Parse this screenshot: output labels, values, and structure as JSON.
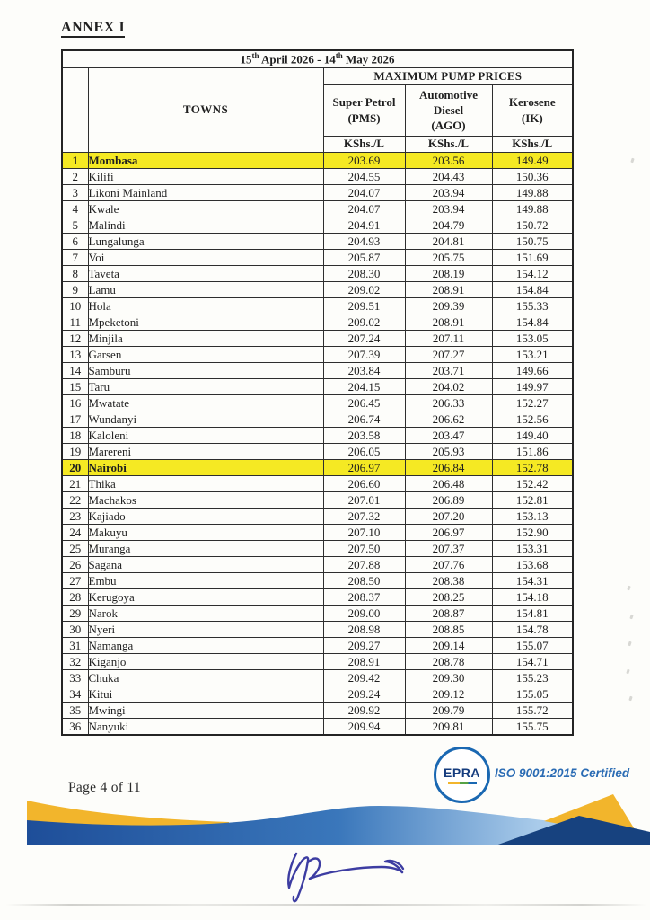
{
  "document": {
    "annex_title": "ANNEX I",
    "page_footer": "Page 4 of 11",
    "logo": {
      "text": "EPRA",
      "iso_label": "ISO 9001:2015 Certified"
    }
  },
  "table": {
    "period": {
      "p1": "15",
      "s1": "th",
      "p2": " April 2026 - 14",
      "s2": "th",
      "p3": " May 2026"
    },
    "prices_header": "MAXIMUM PUMP PRICES",
    "towns_header": "TOWNS",
    "columns": [
      {
        "name_lines": [
          "Super Petrol",
          "(PMS)"
        ],
        "unit": "KShs./L"
      },
      {
        "name_lines": [
          "Automotive",
          "Diesel",
          "(AGO)"
        ],
        "unit": "KShs./L"
      },
      {
        "name_lines": [
          "Kerosene",
          "(IK)"
        ],
        "unit": "KShs./L"
      }
    ],
    "rows": [
      {
        "no": "1",
        "town": "Mombasa",
        "petrol": "203.69",
        "diesel": "203.56",
        "kerosene": "149.49",
        "highlight": true
      },
      {
        "no": "2",
        "town": "Kilifi",
        "petrol": "204.55",
        "diesel": "204.43",
        "kerosene": "150.36",
        "highlight": false
      },
      {
        "no": "3",
        "town": "Likoni Mainland",
        "petrol": "204.07",
        "diesel": "203.94",
        "kerosene": "149.88",
        "highlight": false
      },
      {
        "no": "4",
        "town": "Kwale",
        "petrol": "204.07",
        "diesel": "203.94",
        "kerosene": "149.88",
        "highlight": false
      },
      {
        "no": "5",
        "town": "Malindi",
        "petrol": "204.91",
        "diesel": "204.79",
        "kerosene": "150.72",
        "highlight": false
      },
      {
        "no": "6",
        "town": "Lungalunga",
        "petrol": "204.93",
        "diesel": "204.81",
        "kerosene": "150.75",
        "highlight": false
      },
      {
        "no": "7",
        "town": "Voi",
        "petrol": "205.87",
        "diesel": "205.75",
        "kerosene": "151.69",
        "highlight": false
      },
      {
        "no": "8",
        "town": "Taveta",
        "petrol": "208.30",
        "diesel": "208.19",
        "kerosene": "154.12",
        "highlight": false
      },
      {
        "no": "9",
        "town": "Lamu",
        "petrol": "209.02",
        "diesel": "208.91",
        "kerosene": "154.84",
        "highlight": false
      },
      {
        "no": "10",
        "town": "Hola",
        "petrol": "209.51",
        "diesel": "209.39",
        "kerosene": "155.33",
        "highlight": false
      },
      {
        "no": "11",
        "town": "Mpeketoni",
        "petrol": "209.02",
        "diesel": "208.91",
        "kerosene": "154.84",
        "highlight": false
      },
      {
        "no": "12",
        "town": "Minjila",
        "petrol": "207.24",
        "diesel": "207.11",
        "kerosene": "153.05",
        "highlight": false
      },
      {
        "no": "13",
        "town": "Garsen",
        "petrol": "207.39",
        "diesel": "207.27",
        "kerosene": "153.21",
        "highlight": false
      },
      {
        "no": "14",
        "town": "Samburu",
        "petrol": "203.84",
        "diesel": "203.71",
        "kerosene": "149.66",
        "highlight": false
      },
      {
        "no": "15",
        "town": "Taru",
        "petrol": "204.15",
        "diesel": "204.02",
        "kerosene": "149.97",
        "highlight": false
      },
      {
        "no": "16",
        "town": "Mwatate",
        "petrol": "206.45",
        "diesel": "206.33",
        "kerosene": "152.27",
        "highlight": false
      },
      {
        "no": "17",
        "town": "Wundanyi",
        "petrol": "206.74",
        "diesel": "206.62",
        "kerosene": "152.56",
        "highlight": false
      },
      {
        "no": "18",
        "town": "Kaloleni",
        "petrol": "203.58",
        "diesel": "203.47",
        "kerosene": "149.40",
        "highlight": false
      },
      {
        "no": "19",
        "town": "Marereni",
        "petrol": "206.05",
        "diesel": "205.93",
        "kerosene": "151.86",
        "highlight": false
      },
      {
        "no": "20",
        "town": "Nairobi",
        "petrol": "206.97",
        "diesel": "206.84",
        "kerosene": "152.78",
        "highlight": true
      },
      {
        "no": "21",
        "town": "Thika",
        "petrol": "206.60",
        "diesel": "206.48",
        "kerosene": "152.42",
        "highlight": false
      },
      {
        "no": "22",
        "town": "Machakos",
        "petrol": "207.01",
        "diesel": "206.89",
        "kerosene": "152.81",
        "highlight": false
      },
      {
        "no": "23",
        "town": "Kajiado",
        "petrol": "207.32",
        "diesel": "207.20",
        "kerosene": "153.13",
        "highlight": false
      },
      {
        "no": "24",
        "town": "Makuyu",
        "petrol": "207.10",
        "diesel": "206.97",
        "kerosene": "152.90",
        "highlight": false
      },
      {
        "no": "25",
        "town": "Muranga",
        "petrol": "207.50",
        "diesel": "207.37",
        "kerosene": "153.31",
        "highlight": false
      },
      {
        "no": "26",
        "town": "Sagana",
        "petrol": "207.88",
        "diesel": "207.76",
        "kerosene": "153.68",
        "highlight": false
      },
      {
        "no": "27",
        "town": "Embu",
        "petrol": "208.50",
        "diesel": "208.38",
        "kerosene": "154.31",
        "highlight": false
      },
      {
        "no": "28",
        "town": "Kerugoya",
        "petrol": "208.37",
        "diesel": "208.25",
        "kerosene": "154.18",
        "highlight": false
      },
      {
        "no": "29",
        "town": "Narok",
        "petrol": "209.00",
        "diesel": "208.87",
        "kerosene": "154.81",
        "highlight": false
      },
      {
        "no": "30",
        "town": "Nyeri",
        "petrol": "208.98",
        "diesel": "208.85",
        "kerosene": "154.78",
        "highlight": false
      },
      {
        "no": "31",
        "town": "Namanga",
        "petrol": "209.27",
        "diesel": "209.14",
        "kerosene": "155.07",
        "highlight": false
      },
      {
        "no": "32",
        "town": "Kiganjo",
        "petrol": "208.91",
        "diesel": "208.78",
        "kerosene": "154.71",
        "highlight": false
      },
      {
        "no": "33",
        "town": "Chuka",
        "petrol": "209.42",
        "diesel": "209.30",
        "kerosene": "155.23",
        "highlight": false
      },
      {
        "no": "34",
        "town": "Kitui",
        "petrol": "209.24",
        "diesel": "209.12",
        "kerosene": "155.05",
        "highlight": false
      },
      {
        "no": "35",
        "town": "Mwingi",
        "petrol": "209.92",
        "diesel": "209.79",
        "kerosene": "155.72",
        "highlight": false
      },
      {
        "no": "36",
        "town": "Nanyuki",
        "petrol": "209.94",
        "diesel": "209.81",
        "kerosene": "155.75",
        "highlight": false
      }
    ]
  },
  "colors": {
    "row_highlight": "#f5e923",
    "wave_blue_dark": "#1e4e99",
    "wave_blue_mid": "#3a77bb",
    "wave_blue_light": "#a9cbea",
    "wave_navy": "#17427f",
    "wave_gold": "#f2b52c",
    "logo_blue": "#1a68b2",
    "iso_blue": "#2b6cb4",
    "signature_ink": "#3d3da2"
  }
}
